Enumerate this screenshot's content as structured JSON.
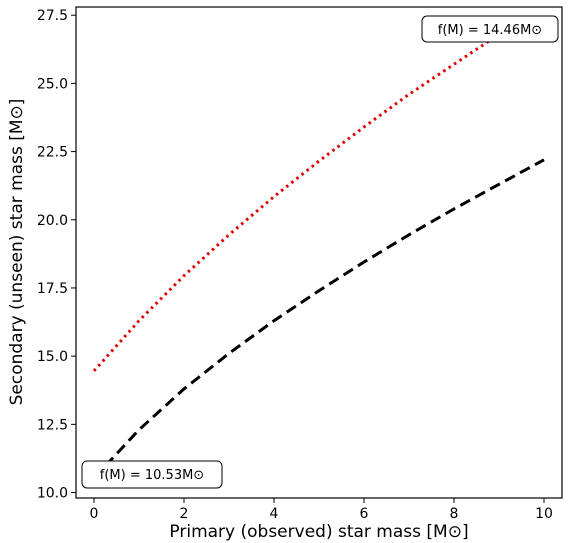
{
  "chart_data": {
    "type": "line",
    "xlabel": "Primary (observed) star mass [M⊙]",
    "ylabel": "Secondary (unseen) star mass [M⊙]",
    "xlim": [
      -0.4,
      10.4
    ],
    "ylim": [
      9.8,
      27.8
    ],
    "x_ticks": [
      0,
      2,
      4,
      6,
      8,
      10
    ],
    "y_ticks": [
      10.0,
      12.5,
      15.0,
      17.5,
      20.0,
      22.5,
      25.0,
      27.5
    ],
    "x_tick_labels": [
      "0",
      "2",
      "4",
      "6",
      "8",
      "10"
    ],
    "y_tick_labels": [
      "10.0",
      "12.5",
      "15.0",
      "17.5",
      "20.0",
      "22.5",
      "25.0",
      "27.5"
    ],
    "grid": false,
    "series": [
      {
        "color": "#e00000",
        "style": "dotted",
        "x": [
          0,
          1,
          2,
          3,
          4,
          5,
          6,
          7,
          8,
          9,
          9.6
        ],
        "y": [
          14.46,
          16.3,
          17.95,
          19.45,
          20.85,
          22.15,
          23.4,
          24.6,
          25.7,
          26.8,
          27.4
        ]
      },
      {
        "color": "#000000",
        "style": "dashed",
        "x": [
          0,
          1,
          2,
          3,
          4,
          5,
          6,
          7,
          8,
          9,
          10
        ],
        "y": [
          10.53,
          12.3,
          13.8,
          15.1,
          16.3,
          17.4,
          18.45,
          19.45,
          20.4,
          21.3,
          22.2
        ]
      }
    ],
    "annotations": [
      {
        "text": "f(M) = 14.46M⊙",
        "position": "top-right"
      },
      {
        "text": "f(M) = 10.53M⊙",
        "position": "bottom-left"
      }
    ]
  }
}
